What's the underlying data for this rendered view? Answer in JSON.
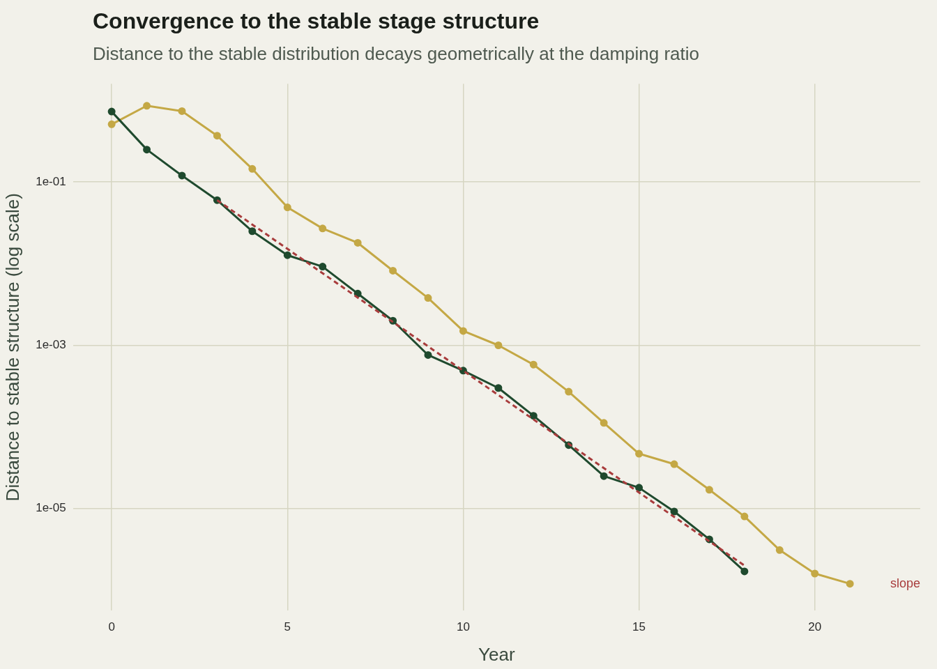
{
  "chart_data": {
    "type": "line",
    "title": "Convergence to the stable stage structure",
    "subtitle": "Distance to the stable distribution decays geometrically at the damping ratio",
    "xlabel": "Year",
    "ylabel": "Distance to stable structure (log scale)",
    "x": [
      0,
      1,
      2,
      3,
      4,
      5,
      6,
      7,
      8,
      9,
      10,
      11,
      12,
      13,
      14,
      15,
      16,
      17,
      18,
      19,
      20,
      21
    ],
    "series": [
      {
        "color": "#c4a845",
        "marker": "circle",
        "line_style": "solid",
        "values": [
          0.51,
          0.86,
          0.74,
          0.37,
          0.145,
          0.049,
          0.027,
          0.018,
          0.0082,
          0.0038,
          0.0015,
          0.001,
          0.00058,
          0.00027,
          0.000112,
          4.7e-05,
          3.5e-05,
          1.7e-05,
          8e-06,
          3.1e-06,
          1.6e-06,
          1.2e-06
        ]
      },
      {
        "color": "#1f4a2e",
        "marker": "circle",
        "line_style": "solid",
        "values": [
          0.73,
          0.25,
          0.12,
          0.06,
          0.025,
          0.0127,
          0.0092,
          0.0043,
          0.002,
          0.00076,
          0.00049,
          0.0003,
          0.000137,
          6e-05,
          2.5e-05,
          1.8e-05,
          9.2e-06,
          4.2e-06,
          1.7e-06,
          null,
          null,
          null
        ]
      },
      {
        "color": "#a83c3c",
        "marker": "none",
        "line_style": "dashed",
        "x": [
          3,
          18
        ],
        "values": [
          0.06,
          2e-06
        ]
      }
    ],
    "annotations": [
      "slope"
    ],
    "log": "y",
    "grid": true,
    "legend": false,
    "xlim": [
      -1.1,
      23
    ],
    "xticks": [
      0,
      5,
      10,
      15,
      20
    ],
    "ylim": [
      5.6e-07,
      1.6
    ],
    "yticks": [
      {
        "value": 0.1,
        "label": "1e-01"
      },
      {
        "value": 0.001,
        "label": "1e-03"
      },
      {
        "value": 1e-05,
        "label": "1e-05"
      }
    ]
  }
}
